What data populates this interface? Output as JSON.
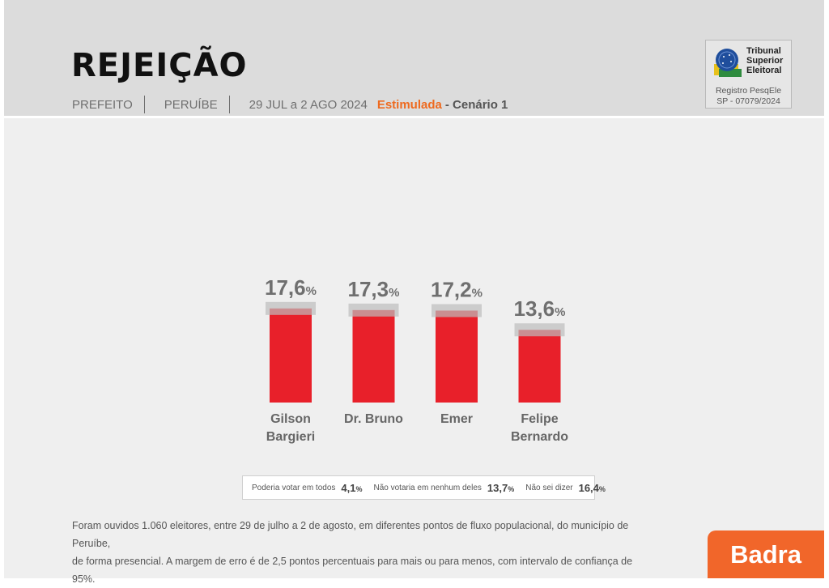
{
  "header": {
    "title": "REJEIÇÃO",
    "office": "PREFEITO",
    "city": "PERUÍBE",
    "period": "29 JUL a 2 AGO 2024",
    "survey_type": "Estimulada",
    "scenario": "- Cenário 1",
    "accent_color": "#ee6a1f"
  },
  "tse": {
    "name_line1": "Tribunal",
    "name_line2": "Superior",
    "name_line3": "Eleitoral",
    "registry_label": "Registro PesqEle",
    "registry_number": "SP - 07079/2024"
  },
  "chart_data": {
    "type": "bar",
    "title": "",
    "categories": [
      [
        "Gilson",
        "Bargieri"
      ],
      [
        "Dr. Bruno"
      ],
      [
        "Emer"
      ],
      [
        "Felipe",
        "Bernardo"
      ]
    ],
    "values": [
      17.6,
      17.3,
      17.2,
      13.6
    ],
    "value_labels": [
      "17,6",
      "17,3",
      "17,2",
      "13,6"
    ],
    "unit": "%",
    "bar_color": "#e8202a",
    "ylim": [
      0,
      20
    ]
  },
  "summary": [
    {
      "label": "Poderia votar em todos",
      "value": "4,1",
      "unit": "%"
    },
    {
      "label": "Não votaria em nenhum deles",
      "value": "13,7",
      "unit": "%"
    },
    {
      "label": "Não sei dizer",
      "value": "16,4",
      "unit": "%"
    }
  ],
  "footnote": {
    "line1": "Foram ouvidos 1.060 eleitores, entre 29 de julho a 2 de agosto, em diferentes pontos de fluxo populacional, do município de Peruíbe,",
    "line2": "de forma presencial. A margem de erro é de 2,5 pontos percentuais para mais ou para menos, com intervalo de confiança de 95%."
  },
  "brand": {
    "name": "Badra",
    "color": "#f1662a"
  }
}
